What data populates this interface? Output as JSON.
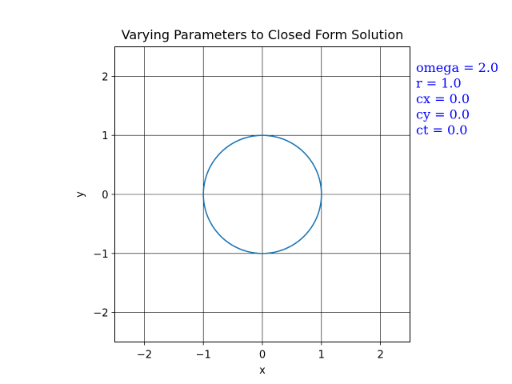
{
  "chart_data": {
    "type": "line",
    "title": "Varying Parameters to Closed Form Solution",
    "xlabel": "x",
    "ylabel": "y",
    "xlim": [
      -2.5,
      2.5
    ],
    "ylim": [
      -2.5,
      2.5
    ],
    "xticks": [
      -2,
      -1,
      0,
      1,
      2
    ],
    "yticks": [
      -2,
      -1,
      0,
      1,
      2
    ],
    "xtick_labels": [
      "−2",
      "−1",
      "0",
      "1",
      "2"
    ],
    "ytick_labels": [
      "−2",
      "−1",
      "0",
      "1",
      "2"
    ],
    "grid": true,
    "series": [
      {
        "shape": "circle",
        "center": [
          0.0,
          0.0
        ],
        "radius": 1.0,
        "color": "#1f77b4"
      }
    ],
    "annotations": [
      "omega = 2.0",
      "r = 1.0",
      "cx = 0.0",
      "cy = 0.0",
      "ct = 0.0"
    ],
    "annotation_color": "#0000ff"
  }
}
